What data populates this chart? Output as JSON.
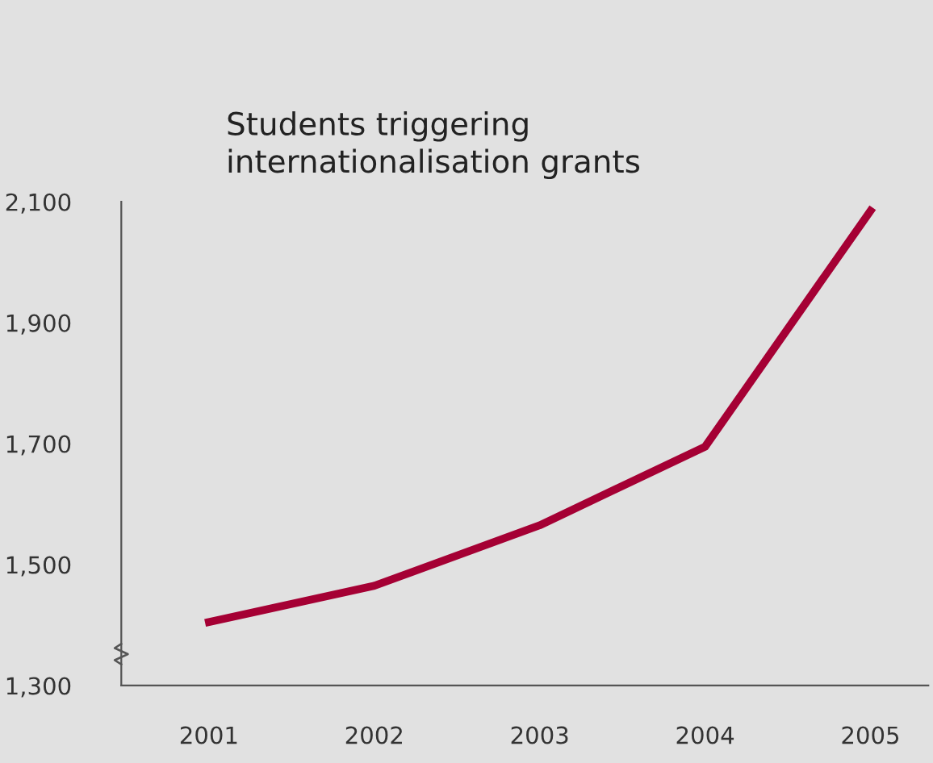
{
  "chart_data": {
    "type": "line",
    "title": "Students triggering\ninternationalisation grants",
    "categories": [
      "2001",
      "2002",
      "2003",
      "2004",
      "2005"
    ],
    "series": [
      {
        "color": "#a50034",
        "values": [
          1405,
          1465,
          1565,
          1695,
          2085
        ]
      }
    ],
    "ylim": [
      1300,
      2100
    ],
    "yticks": [
      {
        "value": 1300,
        "label": "1,300"
      },
      {
        "value": 1500,
        "label": "1,500"
      },
      {
        "value": 1700,
        "label": "1,700"
      },
      {
        "value": 1900,
        "label": "1,900"
      },
      {
        "value": 2100,
        "label": "2,100"
      }
    ],
    "grid": false,
    "legend": false,
    "marker": "none",
    "line_style": "solid"
  }
}
